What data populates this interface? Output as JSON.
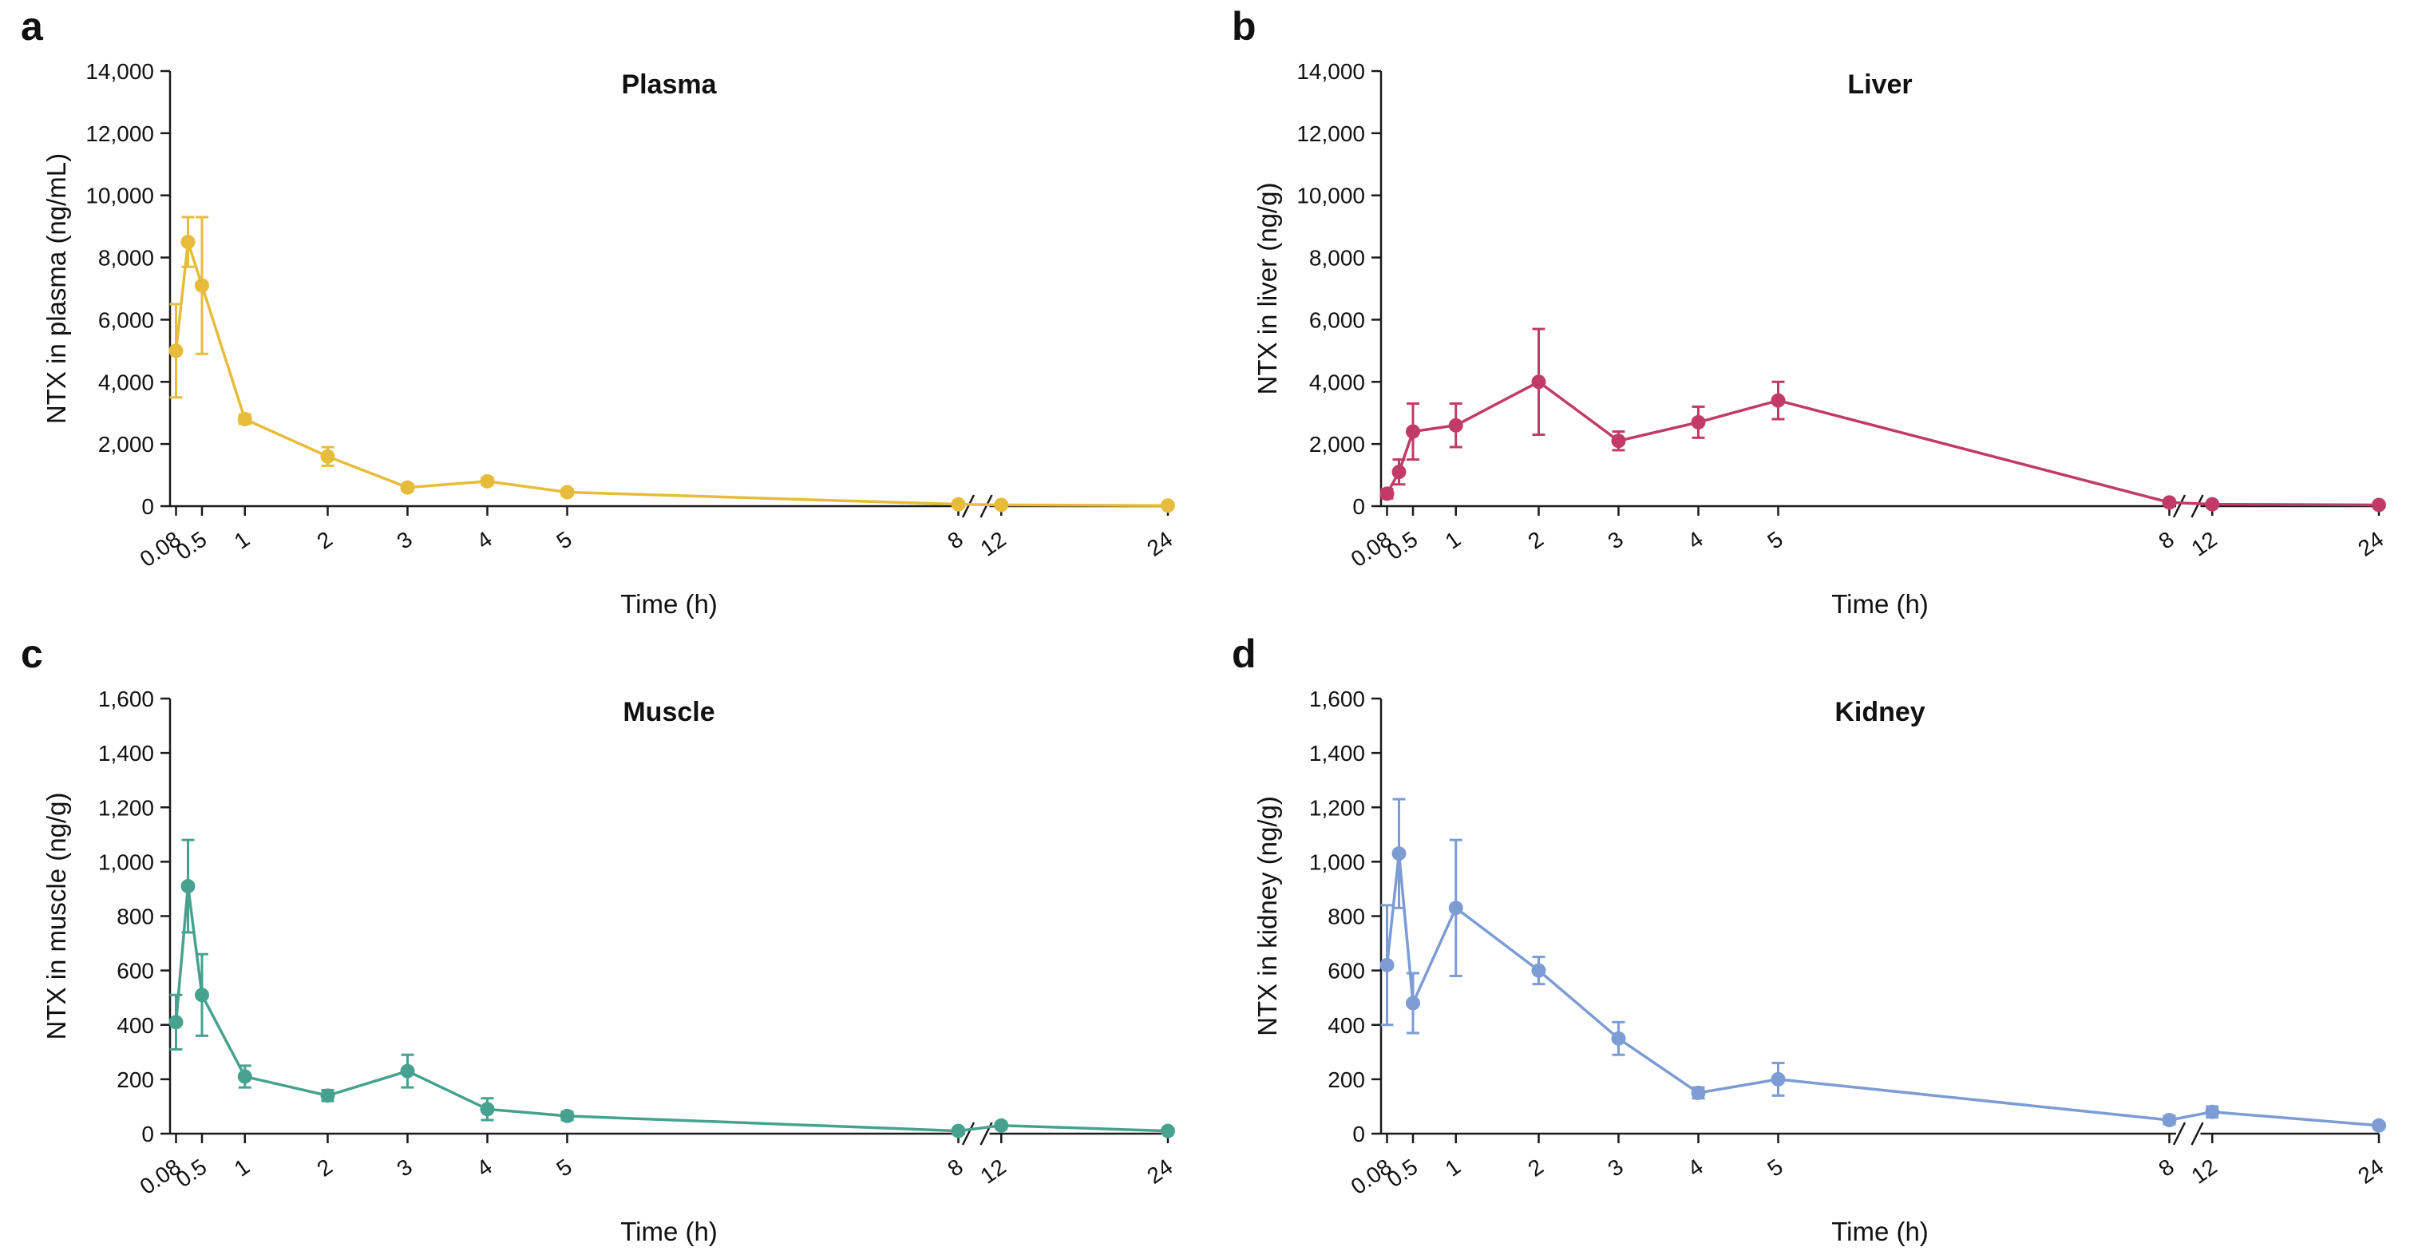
{
  "figure": {
    "type": "multi-panel-line-figure",
    "background": "#ffffff"
  },
  "x_axis": {
    "label": "Time (h)",
    "ticks": [
      0.08,
      0.5,
      1,
      2,
      3,
      4,
      5,
      8,
      12,
      24
    ],
    "tick_labels": [
      "0.08",
      "0.5",
      "1",
      "2",
      "3",
      "4",
      "5",
      "8",
      "12",
      "24"
    ],
    "positions": {
      "0.08": 0.006,
      "0.25": 0.018,
      "0.5": 0.032,
      "1": 0.075,
      "2": 0.158,
      "3": 0.238,
      "4": 0.318,
      "5": 0.398,
      "8": 0.79,
      "12": 0.833,
      "24": 1.0
    },
    "axis_break": true,
    "break_fractions": [
      0.8,
      0.818
    ]
  },
  "chart_data": [
    {
      "type": "line",
      "panel_label": "a",
      "title": "Plasma",
      "ylabel": "NTX in plasma (ng/mL)",
      "xlabel": "Time (h)",
      "color": "#E7BC3B",
      "x": [
        0.08,
        0.25,
        0.5,
        1,
        2,
        3,
        4,
        5,
        8,
        12,
        24
      ],
      "y": [
        5000,
        8500,
        7100,
        2800,
        1600,
        600,
        800,
        450,
        60,
        40,
        20
      ],
      "yerr": [
        1500,
        800,
        2200,
        150,
        300,
        100,
        120,
        100,
        40,
        20,
        10
      ],
      "ylim": [
        0,
        14000
      ],
      "ytick_step": 2000,
      "ytick_labels": [
        "0",
        "2,000",
        "4,000",
        "6,000",
        "8,000",
        "10,000",
        "12,000",
        "14,000"
      ],
      "grid": false,
      "legend": false
    },
    {
      "type": "line",
      "panel_label": "b",
      "title": "Liver",
      "ylabel": "NTX in liver (ng/g)",
      "xlabel": "Time (h)",
      "color": "#C23A68",
      "x": [
        0.08,
        0.25,
        0.5,
        1,
        2,
        3,
        4,
        5,
        8,
        12,
        24
      ],
      "y": [
        400,
        1100,
        2400,
        2600,
        4000,
        2100,
        2700,
        3400,
        120,
        60,
        40
      ],
      "yerr": [
        150,
        400,
        900,
        700,
        1700,
        300,
        500,
        600,
        60,
        30,
        20
      ],
      "ylim": [
        0,
        14000
      ],
      "ytick_step": 2000,
      "ytick_labels": [
        "0",
        "2,000",
        "4,000",
        "6,000",
        "8,000",
        "10,000",
        "12,000",
        "14,000"
      ],
      "grid": false,
      "legend": false
    },
    {
      "type": "line",
      "panel_label": "c",
      "title": "Muscle",
      "ylabel": "NTX in muscle (ng/g)",
      "xlabel": "Time (h)",
      "color": "#46A28F",
      "x": [
        0.08,
        0.25,
        0.5,
        1,
        2,
        3,
        4,
        5,
        8,
        12,
        24
      ],
      "y": [
        410,
        910,
        510,
        210,
        140,
        230,
        90,
        65,
        10,
        30,
        10
      ],
      "yerr": [
        100,
        170,
        150,
        40,
        20,
        60,
        40,
        15,
        5,
        10,
        5
      ],
      "ylim": [
        0,
        1600
      ],
      "ytick_step": 200,
      "ytick_labels": [
        "0",
        "200",
        "400",
        "600",
        "800",
        "1,000",
        "1,200",
        "1,400",
        "1,600"
      ],
      "grid": false,
      "legend": false
    },
    {
      "type": "line",
      "panel_label": "d",
      "title": "Kidney",
      "ylabel": "NTX in kidney (ng/g)",
      "xlabel": "Time (h)",
      "color": "#7C9CD3",
      "x": [
        0.08,
        0.25,
        0.5,
        1,
        2,
        3,
        4,
        5,
        8,
        12,
        24
      ],
      "y": [
        620,
        1030,
        480,
        830,
        600,
        350,
        150,
        200,
        50,
        80,
        30
      ],
      "yerr": [
        220,
        200,
        110,
        250,
        50,
        60,
        20,
        60,
        15,
        20,
        10
      ],
      "ylim": [
        0,
        1600
      ],
      "ytick_step": 200,
      "ytick_labels": [
        "0",
        "200",
        "400",
        "600",
        "800",
        "1,000",
        "1,200",
        "1,400",
        "1,600"
      ],
      "grid": false,
      "legend": false
    }
  ]
}
